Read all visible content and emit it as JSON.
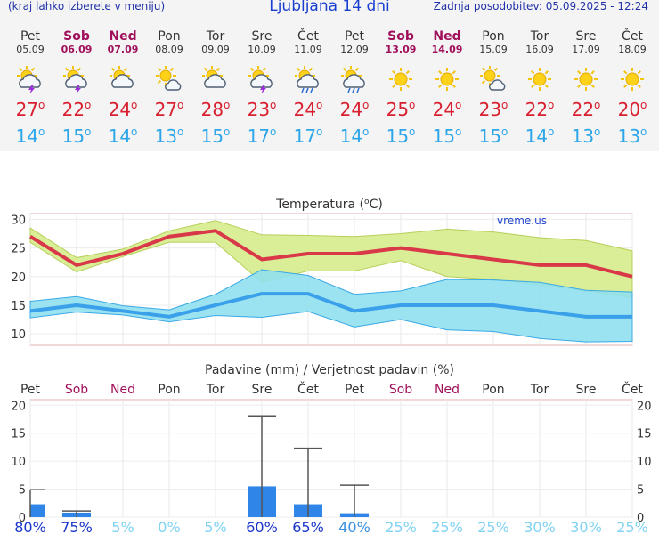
{
  "header": {
    "left_note": "(kraj lahko izberete v meniju)",
    "title": "Ljubljana 14 dni",
    "updated": "Zadnja posodobitev: 05.09.2025 - 12:24"
  },
  "colors": {
    "weekend": "#a0105a",
    "max_temp": "#d82030",
    "min_temp": "#2ca6e8",
    "max_band": "#d6ec8c",
    "min_band": "#90e0ee",
    "precip_bar": "#2f86e8"
  },
  "degree_symbol": "o",
  "days": [
    {
      "name": "Pet",
      "date": "05.09",
      "weekend": false,
      "icon": "sun-cloud-thunder-icon",
      "max": "27",
      "min": "14"
    },
    {
      "name": "Sob",
      "date": "06.09",
      "weekend": true,
      "icon": "sun-cloud-thunder-icon",
      "max": "22",
      "min": "15"
    },
    {
      "name": "Ned",
      "date": "07.09",
      "weekend": true,
      "icon": "sun-cloud-icon",
      "max": "24",
      "min": "14"
    },
    {
      "name": "Pon",
      "date": "08.09",
      "weekend": false,
      "icon": "sun-small-cloud-icon",
      "max": "27",
      "min": "13"
    },
    {
      "name": "Tor",
      "date": "09.09",
      "weekend": false,
      "icon": "sun-cloud-icon",
      "max": "28",
      "min": "15"
    },
    {
      "name": "Sre",
      "date": "10.09",
      "weekend": false,
      "icon": "sun-cloud-thunder-icon",
      "max": "23",
      "min": "17"
    },
    {
      "name": "Čet",
      "date": "11.09",
      "weekend": false,
      "icon": "sun-cloud-rain-icon",
      "max": "24",
      "min": "17"
    },
    {
      "name": "Pet",
      "date": "12.09",
      "weekend": false,
      "icon": "sun-cloud-rain-icon",
      "max": "24",
      "min": "14"
    },
    {
      "name": "Sob",
      "date": "13.09",
      "weekend": true,
      "icon": "sun-icon",
      "max": "25",
      "min": "15"
    },
    {
      "name": "Ned",
      "date": "14.09",
      "weekend": true,
      "icon": "sun-icon",
      "max": "24",
      "min": "15"
    },
    {
      "name": "Pon",
      "date": "15.09",
      "weekend": false,
      "icon": "sun-small-cloud-icon",
      "max": "23",
      "min": "15"
    },
    {
      "name": "Tor",
      "date": "16.09",
      "weekend": false,
      "icon": "sun-icon",
      "max": "22",
      "min": "14"
    },
    {
      "name": "Sre",
      "date": "17.09",
      "weekend": false,
      "icon": "sun-icon",
      "max": "22",
      "min": "13"
    },
    {
      "name": "Čet",
      "date": "18.09",
      "weekend": false,
      "icon": "sun-icon",
      "max": "20",
      "min": "13"
    }
  ],
  "chart_data": [
    {
      "type": "line",
      "title": "Temperatura (°C)",
      "title_prefix": "Temperatura (",
      "title_unit": "C)",
      "watermark": "vreme.us",
      "ylim": [
        8,
        31
      ],
      "yticks": [
        10,
        15,
        20,
        25,
        30
      ],
      "x": [
        "05.09",
        "06.09",
        "07.09",
        "08.09",
        "09.09",
        "10.09",
        "11.09",
        "12.09",
        "13.09",
        "14.09",
        "15.09",
        "16.09",
        "17.09",
        "18.09"
      ],
      "series": [
        {
          "name": "max",
          "values": [
            27,
            22,
            24,
            27,
            28,
            23,
            24,
            24,
            25,
            24,
            23,
            22,
            22,
            20
          ]
        },
        {
          "name": "max_low",
          "values": [
            26,
            20.8,
            23.5,
            26,
            26,
            19,
            21,
            21,
            22.8,
            20,
            19.5,
            18.5,
            17.5,
            16.3
          ]
        },
        {
          "name": "max_high",
          "values": [
            28.5,
            23.3,
            24.8,
            28,
            29.8,
            27.3,
            27.2,
            27,
            27.5,
            28.3,
            27.8,
            26.8,
            26.3,
            24.5
          ]
        },
        {
          "name": "min",
          "values": [
            14,
            15,
            14,
            13,
            15,
            17,
            17,
            14,
            15,
            15,
            15,
            14,
            13,
            13
          ]
        },
        {
          "name": "min_low",
          "values": [
            12.8,
            13.8,
            13.3,
            12.1,
            13.2,
            12.9,
            13.9,
            11.2,
            12.5,
            10.7,
            10.4,
            9.2,
            8.6,
            8.7
          ]
        },
        {
          "name": "min_high",
          "values": [
            15.7,
            16.5,
            14.9,
            14.2,
            16.9,
            21.2,
            20.2,
            16.9,
            17.5,
            19.5,
            19.4,
            19.0,
            17.6,
            17.3
          ]
        }
      ]
    },
    {
      "type": "bar",
      "title": "Padavine (mm) / Verjetnost padavin (%)",
      "categories": [
        "Pet",
        "Sob",
        "Ned",
        "Pon",
        "Tor",
        "Sre",
        "Čet",
        "Pet",
        "Sob",
        "Ned",
        "Pon",
        "Tor",
        "Sre",
        "Čet"
      ],
      "weekend": [
        false,
        true,
        true,
        false,
        false,
        false,
        false,
        false,
        true,
        true,
        false,
        false,
        false,
        false
      ],
      "ylim": [
        0,
        21
      ],
      "yticks": [
        0,
        5,
        10,
        15,
        20
      ],
      "values": [
        2.3,
        0.8,
        0,
        0,
        0,
        5.5,
        2.3,
        0.7,
        0,
        0,
        0,
        0,
        0,
        0
      ],
      "error_max": [
        4.9,
        1.1,
        0,
        0,
        0,
        18.1,
        12.3,
        5.7,
        0,
        0,
        0,
        0,
        0,
        0
      ],
      "probability": [
        "80%",
        "75%",
        "5%",
        "0%",
        "5%",
        "60%",
        "65%",
        "40%",
        "25%",
        "25%",
        "25%",
        "30%",
        "30%",
        "25%"
      ],
      "probability_values": [
        80,
        75,
        5,
        0,
        5,
        60,
        65,
        40,
        25,
        25,
        25,
        30,
        30,
        25
      ]
    }
  ]
}
